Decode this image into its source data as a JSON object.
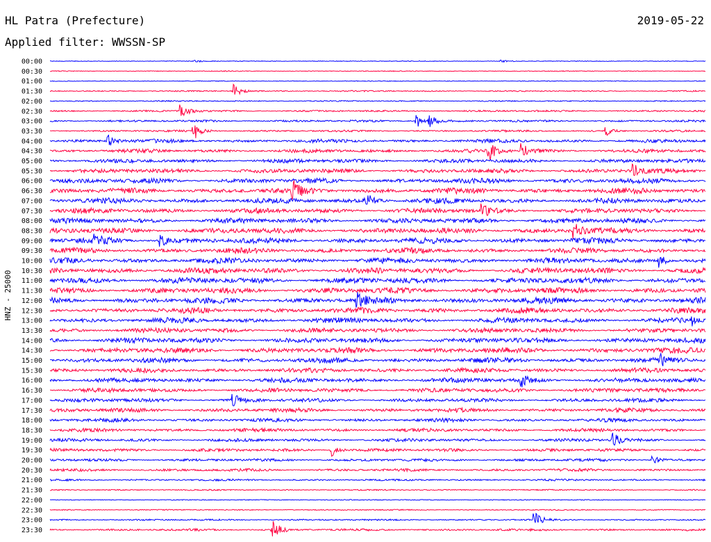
{
  "header": {
    "station": "HL Patra (Prefecture)",
    "date": "2019-05-22",
    "filter": "Applied filter: WWSSN-SP"
  },
  "chart_data": {
    "type": "line",
    "ylabel": "HNZ - 25000",
    "rows": [
      "00:00",
      "00:30",
      "01:00",
      "01:30",
      "02:00",
      "02:30",
      "03:00",
      "03:30",
      "04:00",
      "04:30",
      "05:00",
      "05:30",
      "06:00",
      "06:30",
      "07:00",
      "07:30",
      "08:00",
      "08:30",
      "09:00",
      "09:30",
      "10:00",
      "10:30",
      "11:00",
      "11:30",
      "12:00",
      "12:30",
      "13:00",
      "13:30",
      "14:00",
      "14:30",
      "15:00",
      "15:30",
      "16:00",
      "16:30",
      "17:00",
      "17:30",
      "18:00",
      "18:30",
      "19:00",
      "19:30",
      "20:00",
      "20:30",
      "21:00",
      "21:30",
      "22:00",
      "22:30",
      "23:00",
      "23:30"
    ],
    "colors": [
      "#0000ff",
      "#ff0040"
    ],
    "noise_level": [
      0.3,
      0.4,
      0.3,
      0.8,
      0.7,
      1.2,
      1.5,
      1.3,
      2.6,
      2.8,
      3.0,
      3.4,
      3.8,
      4.2,
      4.0,
      3.8,
      4.0,
      4.5,
      4.3,
      4.0,
      4.2,
      4.5,
      4.6,
      4.5,
      4.6,
      4.3,
      4.0,
      3.6,
      4.0,
      4.3,
      3.8,
      3.4,
      3.6,
      3.3,
      2.8,
      3.0,
      2.6,
      2.6,
      2.3,
      2.3,
      2.0,
      2.0,
      1.3,
      0.8,
      0.4,
      0.6,
      1.0,
      1.5
    ],
    "events": [
      {
        "row": 0,
        "pos": 0.22,
        "amp": 2
      },
      {
        "row": 0,
        "pos": 0.69,
        "amp": 1.5
      },
      {
        "row": 3,
        "pos": 0.28,
        "amp": 10
      },
      {
        "row": 5,
        "pos": 0.2,
        "amp": 12
      },
      {
        "row": 6,
        "pos": 0.56,
        "amp": 9
      },
      {
        "row": 6,
        "pos": 0.58,
        "amp": 7
      },
      {
        "row": 7,
        "pos": 0.22,
        "amp": 12
      },
      {
        "row": 7,
        "pos": 0.85,
        "amp": 6
      },
      {
        "row": 8,
        "pos": 0.09,
        "amp": 8
      },
      {
        "row": 9,
        "pos": 0.67,
        "amp": 12
      },
      {
        "row": 9,
        "pos": 0.72,
        "amp": 10
      },
      {
        "row": 11,
        "pos": 0.89,
        "amp": 10
      },
      {
        "row": 13,
        "pos": 0.37,
        "amp": 18
      },
      {
        "row": 14,
        "pos": 0.48,
        "amp": 14
      },
      {
        "row": 15,
        "pos": 0.66,
        "amp": 10
      },
      {
        "row": 17,
        "pos": 0.8,
        "amp": 10
      },
      {
        "row": 18,
        "pos": 0.07,
        "amp": 10
      },
      {
        "row": 18,
        "pos": 0.17,
        "amp": 8
      },
      {
        "row": 20,
        "pos": 0.93,
        "amp": 9
      },
      {
        "row": 24,
        "pos": 0.47,
        "amp": 9
      },
      {
        "row": 26,
        "pos": 0.98,
        "amp": 8
      },
      {
        "row": 30,
        "pos": 0.93,
        "amp": 9
      },
      {
        "row": 32,
        "pos": 0.72,
        "amp": 9
      },
      {
        "row": 34,
        "pos": 0.28,
        "amp": 8
      },
      {
        "row": 38,
        "pos": 0.86,
        "amp": 9
      },
      {
        "row": 39,
        "pos": 0.43,
        "amp": 9
      },
      {
        "row": 40,
        "pos": 0.92,
        "amp": 6
      },
      {
        "row": 46,
        "pos": 0.74,
        "amp": 10
      },
      {
        "row": 47,
        "pos": 0.34,
        "amp": 14
      }
    ]
  }
}
